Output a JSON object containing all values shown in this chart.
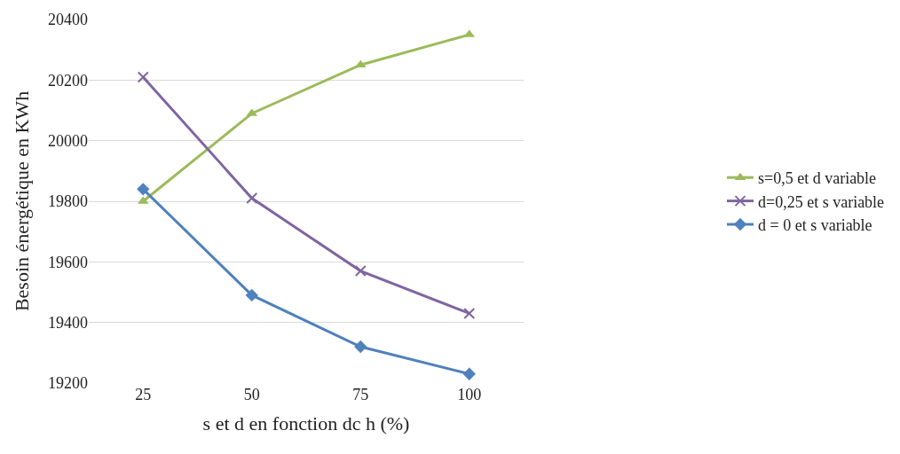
{
  "chart_data": {
    "type": "line",
    "xlabel": "s et d en fonction dc h (%)",
    "ylabel": "Besoin énergétique en KWh",
    "categories": [
      "25",
      "50",
      "75",
      "100"
    ],
    "series": [
      {
        "name": "s=0,5 et d variable",
        "color": "#9bbb59",
        "marker": "triangle",
        "values": [
          19800,
          20090,
          20250,
          20350
        ]
      },
      {
        "name": "d=0,25 et s variable",
        "color": "#8064a2",
        "marker": "cross",
        "values": [
          20210,
          19810,
          19570,
          19430
        ]
      },
      {
        "name": "d = 0 et s variable",
        "color": "#4f81bd",
        "marker": "diamond",
        "values": [
          19840,
          19490,
          19320,
          19230
        ]
      }
    ],
    "ylim": [
      19200,
      20400
    ],
    "yticks": [
      19200,
      19400,
      19600,
      19800,
      20000,
      20200,
      20400
    ],
    "grid": "y",
    "legend": "right",
    "line_style": "solid"
  }
}
